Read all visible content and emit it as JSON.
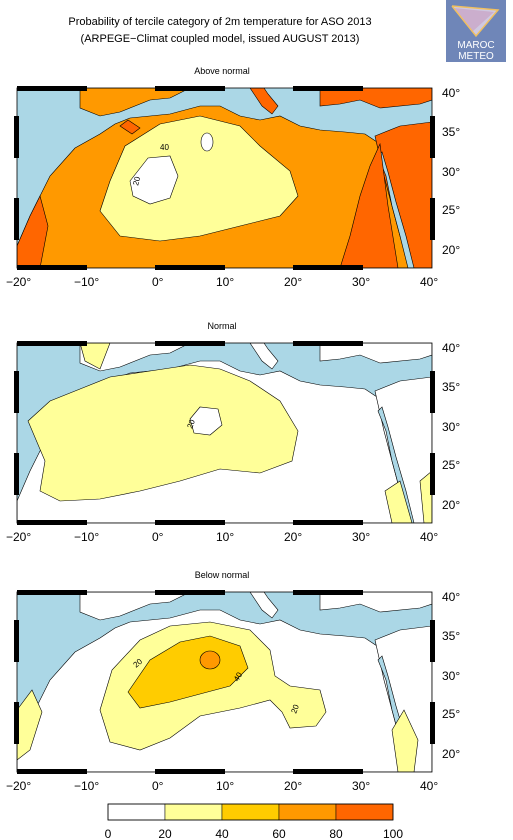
{
  "title_line1": "Probability of tercile category of 2m temperature for ASO 2013",
  "title_line2": "(ARPEGE−Climat coupled model, issued AUGUST 2013)",
  "logo": {
    "line1": "MAROC",
    "line2": "METEO"
  },
  "lon_labels": [
    "−20°",
    "−10°",
    "0°",
    "10°",
    "20°",
    "30°",
    "40°"
  ],
  "lat_labels": [
    "40°",
    "35°",
    "30°",
    "25°",
    "20°"
  ],
  "panels": [
    {
      "title": "Above normal",
      "contour_labels": [
        "40",
        "20"
      ]
    },
    {
      "title": "Normal",
      "contour_labels": [
        "20"
      ]
    },
    {
      "title": "Below normal",
      "contour_labels": [
        "20",
        "40",
        "20"
      ]
    }
  ],
  "colorbar": {
    "ticks": [
      "0",
      "20",
      "40",
      "60",
      "80",
      "100"
    ],
    "colors": [
      "#ffffff",
      "#ffff99",
      "#ffcc00",
      "#ff9900",
      "#ff6600"
    ]
  },
  "colors": {
    "sea": "#abd7e6",
    "land": "#ffffff"
  }
}
